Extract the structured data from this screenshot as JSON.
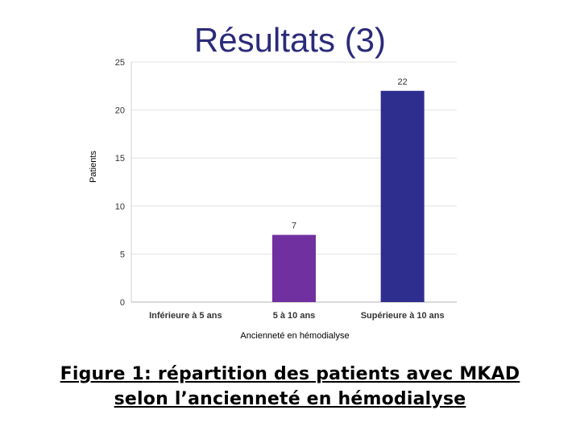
{
  "slide": {
    "title": "Résultats (3)",
    "caption_line1": "Figure 1: répartition des patients avec MKAD",
    "caption_line2": "selon l’ancienneté en hémodialyse"
  },
  "chart_data": {
    "type": "bar",
    "categories": [
      "Inférieure à 5 ans",
      "5 à 10 ans",
      "Supérieure à 10  ans"
    ],
    "values": [
      0,
      7,
      22
    ],
    "data_labels": [
      "",
      "7",
      "22"
    ],
    "colors": [
      "#7b3fb0",
      "#7030a0",
      "#2e2e8f"
    ],
    "xlabel": "Ancienneté en hémodialyse",
    "ylabel": "Patients",
    "ylim": [
      0,
      25
    ],
    "yticks": [
      0,
      5,
      10,
      15,
      20,
      25
    ],
    "grid": true,
    "legend": "none"
  }
}
